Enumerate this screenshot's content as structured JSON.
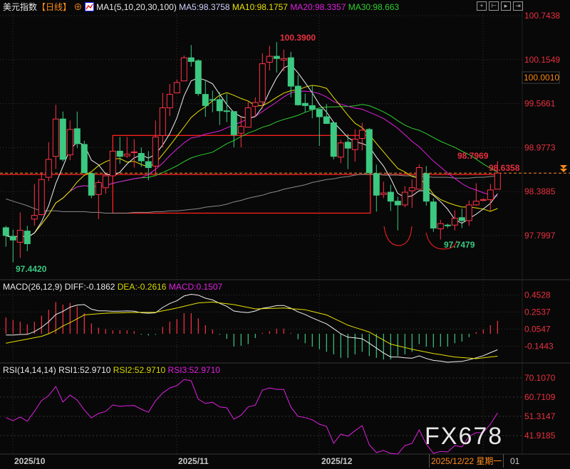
{
  "header": {
    "title": "美元指数",
    "period": "【日线】",
    "ma_label": "MA1(5,10,20,30,100)",
    "ma5": "MA5:98.3758",
    "ma10": "MA10:98.1757",
    "ma20": "MA20:98.3357",
    "ma30": "MA30:98.663"
  },
  "toolbar_icons": [
    "crosshair-icon",
    "zoom-start-icon",
    "play-icon",
    "go-end-icon"
  ],
  "macd_header": {
    "name": "MACD(26,12,9)",
    "diff": "DIFF:-0.1862",
    "dea": "DEA:-0.2616",
    "macd": "MACD:0.1507"
  },
  "rsi_header": {
    "name": "RSI(14,14,14)",
    "rsi1": "RSI1:52.9710",
    "rsi2": "RSI2:52.9710",
    "rsi3": "RSI3:52.9710"
  },
  "watermark": "FX678",
  "x_axis": {
    "labels": [
      "2025/10",
      "2025/11",
      "2025/12"
    ],
    "cursor_date": "2025/12/22 星期一",
    "next_label": "01"
  },
  "colors": {
    "up": "#ff3347",
    "down": "#3cc880",
    "ma5": "#f0f0f0",
    "ma10": "#e8e000",
    "ma20": "#e020e0",
    "ma30": "#30d030",
    "ma100": "#8a8a8a",
    "axis": "#e8303f",
    "price_line": "#ff8c1a"
  },
  "chart_data": [
    {
      "type": "candlestick",
      "title": "美元指数【日线】",
      "y_ticks": [
        "100.7438",
        "100.1549",
        "99.5661",
        "98.9773",
        "98.3885",
        "97.7997"
      ],
      "ylim": [
        97.7997,
        100.7438
      ],
      "current_price": "98.6358",
      "crosshair_price": "100.0010",
      "annotations": {
        "high": "100.3900",
        "low_left": "97.4420",
        "low_right": "97.7479",
        "recent_high": "98.7969",
        "last": "98.6358"
      },
      "ohlc": [
        [
          97.905,
          97.93,
          97.65,
          97.8
        ],
        [
          97.79,
          97.88,
          97.44,
          97.74
        ],
        [
          97.71,
          98.11,
          97.5,
          97.87
        ],
        [
          97.86,
          97.93,
          97.59,
          97.69
        ],
        [
          98.02,
          98.49,
          97.93,
          98.07
        ],
        [
          98.08,
          98.65,
          98.07,
          98.55
        ],
        [
          98.58,
          99.05,
          98.53,
          98.82
        ],
        [
          98.86,
          99.55,
          98.69,
          99.36
        ],
        [
          99.36,
          99.46,
          98.79,
          98.82
        ],
        [
          98.88,
          99.34,
          98.81,
          99.22
        ],
        [
          99.23,
          99.46,
          98.97,
          99.03
        ],
        [
          99.02,
          99.07,
          98.64,
          98.64
        ],
        [
          98.63,
          98.63,
          98.3,
          98.34
        ],
        [
          98.35,
          98.54,
          98.02,
          98.51
        ],
        [
          98.44,
          98.6,
          98.36,
          98.6
        ],
        [
          98.6,
          98.93,
          98.6,
          98.93
        ],
        [
          98.93,
          99.12,
          98.76,
          98.86
        ],
        [
          98.866,
          99.12,
          98.84,
          98.89
        ],
        [
          98.91,
          99.09,
          98.71,
          98.92
        ],
        [
          98.9,
          98.98,
          98.72,
          98.8
        ],
        [
          98.79,
          98.93,
          98.54,
          98.71
        ],
        [
          98.73,
          99.34,
          98.6,
          99.12
        ],
        [
          99.14,
          99.71,
          98.98,
          99.51
        ],
        [
          99.51,
          99.83,
          99.4,
          99.69
        ],
        [
          99.71,
          99.89,
          99.71,
          99.85
        ],
        [
          99.87,
          100.21,
          99.87,
          100.18
        ],
        [
          100.18,
          100.35,
          100.06,
          100.13
        ],
        [
          100.14,
          100.16,
          99.67,
          99.7
        ],
        [
          99.69,
          99.87,
          99.39,
          99.54
        ],
        [
          99.62,
          99.74,
          99.45,
          99.61
        ],
        [
          99.62,
          99.72,
          99.28,
          99.47
        ],
        [
          99.47,
          99.7,
          99.32,
          99.46
        ],
        [
          99.46,
          99.46,
          98.98,
          99.15
        ],
        [
          99.17,
          99.39,
          98.98,
          99.26
        ],
        [
          99.25,
          99.59,
          99.25,
          99.51
        ],
        [
          99.53,
          99.65,
          99.39,
          99.58
        ],
        [
          99.59,
          100.24,
          99.5,
          100.1
        ],
        [
          100.12,
          100.34,
          100.01,
          100.2
        ],
        [
          100.2,
          100.39,
          99.98,
          100.17
        ],
        [
          100.15,
          100.29,
          100.0,
          100.17
        ],
        [
          100.18,
          100.26,
          99.65,
          99.8
        ],
        [
          99.8,
          99.95,
          99.54,
          99.55
        ],
        [
          99.57,
          99.7,
          99.45,
          99.54
        ],
        [
          99.54,
          99.81,
          99.37,
          99.49
        ],
        [
          99.49,
          99.49,
          99.0,
          99.39
        ],
        [
          99.39,
          99.56,
          99.3,
          99.3
        ],
        [
          99.31,
          99.31,
          98.82,
          98.86
        ],
        [
          98.85,
          99.08,
          98.77,
          99.04
        ],
        [
          99.05,
          99.16,
          98.69,
          98.97
        ],
        [
          98.95,
          99.22,
          98.79,
          99.09
        ],
        [
          99.1,
          99.31,
          98.94,
          99.21
        ],
        [
          99.22,
          99.24,
          98.64,
          98.64
        ],
        [
          98.63,
          98.75,
          98.12,
          98.34
        ],
        [
          98.35,
          98.52,
          98.3,
          98.37
        ],
        [
          98.38,
          98.48,
          98.13,
          98.26
        ],
        [
          98.26,
          98.32,
          97.87,
          98.21
        ],
        [
          98.21,
          98.46,
          98.18,
          98.38
        ],
        [
          98.4,
          98.55,
          98.17,
          98.44
        ],
        [
          98.42,
          98.75,
          98.42,
          98.71
        ],
        [
          98.63,
          98.73,
          98.2,
          98.26
        ],
        [
          98.25,
          98.3,
          97.85,
          97.9
        ],
        [
          97.89,
          98.01,
          97.7479,
          97.96
        ],
        [
          97.94,
          97.96,
          97.9,
          97.93
        ],
        [
          97.94,
          98.14,
          97.87,
          98.03
        ],
        [
          98.04,
          98.16,
          97.9,
          98.0
        ],
        [
          98.0,
          98.27,
          97.93,
          98.21
        ],
        [
          98.21,
          98.5,
          98.2,
          98.26
        ],
        [
          98.27,
          98.3,
          98.26,
          98.28
        ],
        [
          98.28,
          98.49,
          98.13,
          98.41
        ],
        [
          98.42,
          98.7969,
          98.42,
          98.6358
        ]
      ],
      "ma100": [
        98.29,
        98.26,
        98.23,
        98.2,
        98.16,
        98.13,
        98.13,
        98.13,
        98.12,
        98.12,
        98.12,
        98.12,
        98.11,
        98.11,
        98.1,
        98.1,
        98.1,
        98.1,
        98.11,
        98.11,
        98.11,
        98.12,
        98.12,
        98.13,
        98.13,
        98.14,
        98.15,
        98.16,
        98.18,
        98.19,
        98.2,
        98.22,
        98.25,
        98.27,
        98.3,
        98.32,
        98.34,
        98.37,
        98.39,
        98.42,
        98.44,
        98.46,
        98.48,
        98.51,
        98.53,
        98.55,
        98.56,
        98.58,
        98.59,
        98.61,
        98.62,
        98.62,
        98.62,
        98.61,
        98.61,
        98.61,
        98.6,
        98.6,
        98.59,
        98.59,
        98.58,
        98.58,
        98.58,
        98.57,
        98.57,
        98.57,
        98.58,
        98.58,
        98.59,
        98.6
      ],
      "boxes": [
        {
          "from_bar": 15,
          "to_bar": 51,
          "top": 99.14,
          "bottom": 98.1
        }
      ]
    },
    {
      "type": "macd",
      "y_ticks": [
        "0.4528",
        "0.2537",
        "0.0547",
        "-0.1443"
      ],
      "macd_hist": [
        0.19,
        0.16,
        0.14,
        0.11,
        0.14,
        0.21,
        0.28,
        0.37,
        0.34,
        0.36,
        0.32,
        0.24,
        0.12,
        0.07,
        0.055,
        0.04,
        0.04,
        0.04,
        0.03,
        -0.01,
        -0.02,
        -0.01,
        0.08,
        0.14,
        0.17,
        0.24,
        0.24,
        0.18,
        0.1,
        0.05,
        -0.01,
        -0.06,
        -0.15,
        -0.14,
        -0.12,
        -0.05,
        0.01,
        0.03,
        0.06,
        0.06,
        0.01,
        -0.064,
        -0.11,
        -0.15,
        -0.18,
        -0.21,
        -0.24,
        -0.28,
        -0.28,
        -0.24,
        -0.21,
        -0.26,
        -0.28,
        -0.3,
        -0.3,
        -0.26,
        -0.24,
        -0.21,
        -0.12,
        -0.15,
        -0.16,
        -0.15,
        -0.15,
        -0.11,
        -0.09,
        -0.04,
        0.02,
        0.05,
        0.1,
        0.1507
      ],
      "dea": [
        -0.11,
        -0.094,
        -0.078,
        -0.062,
        -0.046,
        -0.03,
        0.0,
        0.04,
        0.09,
        0.13,
        0.175,
        0.22,
        0.227,
        0.233,
        0.24,
        0.242,
        0.244,
        0.246,
        0.248,
        0.25,
        0.25,
        0.25,
        0.267,
        0.283,
        0.3,
        0.32,
        0.34,
        0.36,
        0.365,
        0.37,
        0.36,
        0.35,
        0.34,
        0.323,
        0.307,
        0.29,
        0.293,
        0.295,
        0.298,
        0.3,
        0.293,
        0.287,
        0.28,
        0.26,
        0.24,
        0.22,
        0.18,
        0.14,
        0.1,
        0.073,
        0.047,
        0.02,
        -0.027,
        -0.073,
        -0.12,
        -0.14,
        -0.16,
        -0.18,
        -0.197,
        -0.213,
        -0.23,
        -0.243,
        -0.257,
        -0.27,
        -0.277,
        -0.283,
        -0.29,
        -0.28,
        -0.27,
        -0.2616
      ]
    },
    {
      "type": "line",
      "y_ticks": [
        "70.1070",
        "60.7109",
        "51.3147",
        "41.9185"
      ],
      "rsi": [
        50.7,
        49.2,
        51.0,
        48.9,
        53.7,
        59.0,
        61.4,
        65.9,
        58.3,
        61.7,
        59.3,
        54.4,
        50.6,
        52.7,
        53.7,
        56.9,
        56.2,
        56.5,
        56.6,
        54.8,
        53.3,
        58.9,
        62.7,
        65.2,
        66.3,
        69.3,
        68.7,
        59.7,
        57.6,
        58.2,
        55.9,
        55.5,
        49.9,
        51.9,
        55.9,
        56.8,
        64.2,
        65.2,
        64.5,
        64.5,
        55.8,
        51.3,
        50.7,
        49.6,
        47.5,
        46.4,
        38.1,
        42.6,
        41.6,
        44.3,
        46.8,
        37.4,
        33.6,
        34.6,
        33.2,
        32.9,
        37.0,
        38.1,
        44.7,
        37.7,
        33.2,
        34.2,
        33.9,
        37.0,
        36.4,
        41.6,
        43.3,
        43.3,
        47.5,
        52.971
      ]
    }
  ]
}
